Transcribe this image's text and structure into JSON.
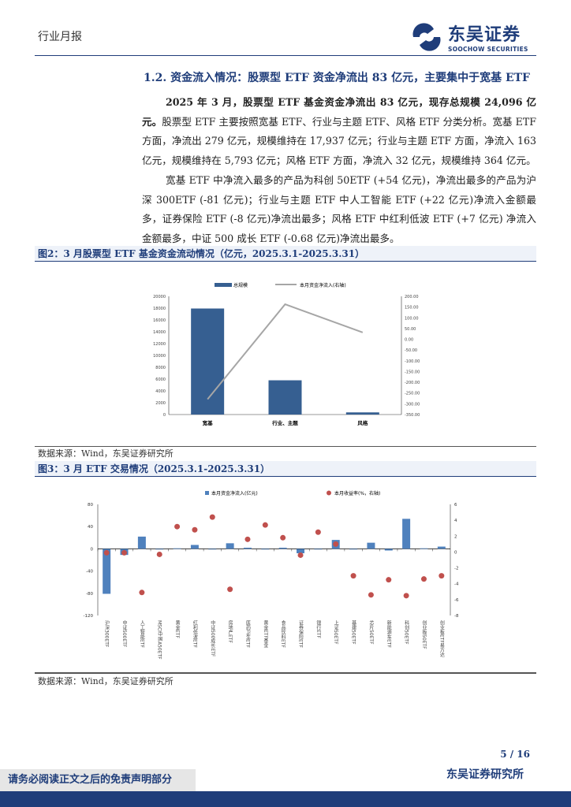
{
  "header": {
    "report_type": "行业月报",
    "logo_cn": "东吴证券",
    "logo_en": "SOOCHOW SECURITIES"
  },
  "section_title": "1.2.  资金流入情况：股票型 ETF 资金净流出 83 亿元，主要集中于宽基 ETF",
  "paragraph1_bold": "2025 年 3 月，股票型 ETF 基金资金净流出 83 亿元，现存总规模 24,096 亿元。",
  "paragraph1_rest": "股票型 ETF 主要按照宽基 ETF、行业与主题 ETF、风格 ETF 分类分析。宽基 ETF 方面，净流出 279 亿元，规模维持在 17,937 亿元；行业与主题 ETF 方面，净流入 163 亿元，规模维持在 5,793 亿元；风格 ETF 方面，净流入 32 亿元，规模维持 364 亿元。",
  "paragraph2": "宽基 ETF 中净流入最多的产品为科创 50ETF (+54 亿元)，净流出最多的产品为沪深 300ETF (-81 亿元)；行业与主题 ETF 中人工智能 ETF (+22 亿元)净流入金额最多，证券保险 ETF (-8 亿元)净流出最多；风格 ETF 中红利低波 ETF (+7 亿元) 净流入金额最多，中证 500 成长 ETF (-0.68 亿元)净流出最多。",
  "figure2_caption": "图2：3 月股票型 ETF 基金资金流动情况（亿元，2025.3.1-2025.3.31）",
  "figure3_caption": "图3：3 月 ETF 交易情况（2025.3.1-2025.3.31）",
  "source": "数据来源：Wind，东吴证券研究所",
  "page": "5 / 16",
  "footer": {
    "disclaimer": "请务必阅读正文之后的免责声明部分",
    "firm": "东吴证券研究所"
  },
  "colors": {
    "brand": "#1f3d7a",
    "bar1": "#365f91",
    "bar2": "#4f81bd",
    "dot": "#c0504d",
    "line": "#a6a6a6"
  },
  "chart_data": [
    {
      "type": "bar+line",
      "categories": [
        "宽基",
        "行业、主题",
        "风格"
      ],
      "series": [
        {
          "name": "总规模",
          "axis": "left",
          "values": [
            17937,
            5793,
            364
          ]
        },
        {
          "name": "本月资金净流入(右轴)",
          "axis": "right",
          "values": [
            -279,
            163,
            32
          ]
        }
      ],
      "left_ylim": [
        0,
        20000
      ],
      "left_ticks": [
        "0",
        "2000",
        "4000",
        "6000",
        "8000",
        "10000",
        "12000",
        "14000",
        "16000",
        "18000",
        "20000"
      ],
      "right_ylim": [
        -350,
        200
      ],
      "right_ticks": [
        "-350.00",
        "-300.00",
        "-250.00",
        "-200.00",
        "-150.00",
        "-100.00",
        "-50.00",
        "0.00",
        "50.00",
        "100.00",
        "150.00",
        "200.00"
      ],
      "legend": "top"
    },
    {
      "type": "bar+scatter",
      "categories": [
        "沪深300ETF",
        "中证500ETF",
        "人工智能ETF",
        "MSCI中国A50ETF",
        "黄金ETF",
        "红利低波ETF",
        "中证500成长ETF",
        "房地产ETF",
        "医药卫生ETF",
        "黄金ETF基金",
        "食品饮料ETF",
        "证券保险ETF",
        "银行ETF",
        "上证50ETF",
        "基建50ETF",
        "芯片50ETF",
        "新能源车ETF",
        "科创50ETF",
        "创业板50ETF",
        "创业板ETF易方达"
      ],
      "series": [
        {
          "name": "本月资金净流入(亿元)",
          "axis": "left",
          "values": [
            -81,
            -11,
            22,
            -1,
            1,
            7,
            -1,
            10,
            2,
            -1,
            2,
            -8,
            -1,
            16,
            -1,
            11,
            -3,
            54,
            1,
            4
          ]
        },
        {
          "name": "本月收益率(%，右轴)",
          "axis": "right",
          "values": [
            -0.1,
            -0.1,
            -5.1,
            -0.3,
            3.2,
            2.8,
            4.4,
            -4.7,
            1.6,
            3.4,
            1.8,
            -0.4,
            2.5,
            1.0,
            -3.0,
            -5.4,
            -3.5,
            -5.5,
            -3.4,
            -3.0
          ]
        }
      ],
      "left_ylim": [
        -120,
        80
      ],
      "left_ticks": [
        "-120",
        "-80",
        "-40",
        "0",
        "40",
        "80"
      ],
      "right_ylim": [
        -8,
        6
      ],
      "right_ticks": [
        "-8",
        "-6",
        "-4",
        "-2",
        "0",
        "2",
        "4",
        "6"
      ],
      "legend": "top"
    }
  ]
}
